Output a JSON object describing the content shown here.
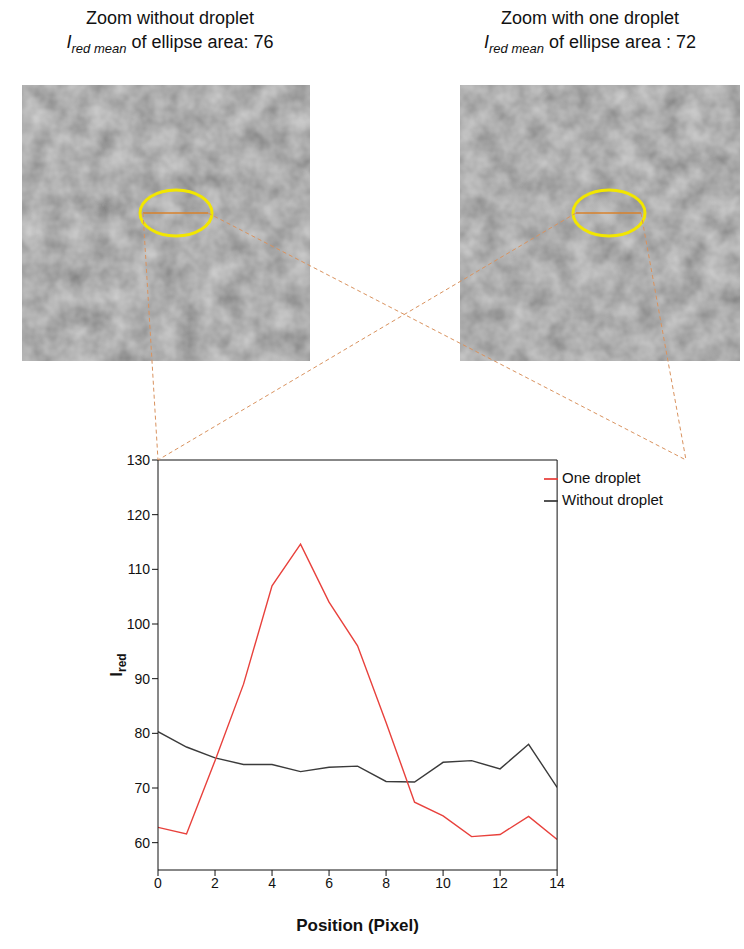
{
  "panels": [
    {
      "title": "Zoom without droplet",
      "measure": {
        "symbol": "I",
        "subscript": "red mean",
        "text": " of ellipse area: 76"
      }
    },
    {
      "title": "Zoom with one droplet",
      "measure": {
        "symbol": "I",
        "subscript": "red mean",
        "text": " of ellipse area : 72"
      }
    }
  ],
  "chart_data": {
    "type": "line",
    "xlabel": "Position (Pixel)",
    "ylabel": {
      "symbol": "I",
      "subscript": "red"
    },
    "x": [
      0,
      1,
      2,
      3,
      4,
      5,
      6,
      7,
      8,
      9,
      10,
      11,
      12,
      13,
      14
    ],
    "series": [
      {
        "name": "Without droplet",
        "color": "#3b3b3b",
        "values": [
          80.3,
          77.5,
          75.5,
          74.3,
          74.3,
          73,
          73.8,
          74,
          71.2,
          71.1,
          74.7,
          75,
          73.5,
          78,
          70.1
        ]
      },
      {
        "name": "One droplet",
        "color": "#e8413c",
        "values": [
          62.8,
          61.6,
          75,
          89,
          107,
          114.6,
          104,
          96,
          82,
          67.4,
          64.9,
          61.1,
          61.5,
          64.8,
          60.6
        ]
      }
    ],
    "xlim": [
      0,
      14
    ],
    "xticks": [
      0,
      2,
      4,
      6,
      8,
      10,
      12,
      14
    ],
    "ylim": [
      55,
      130
    ],
    "yticks": [
      60,
      70,
      80,
      90,
      100,
      110,
      120,
      130
    ],
    "legend": "upper right"
  }
}
